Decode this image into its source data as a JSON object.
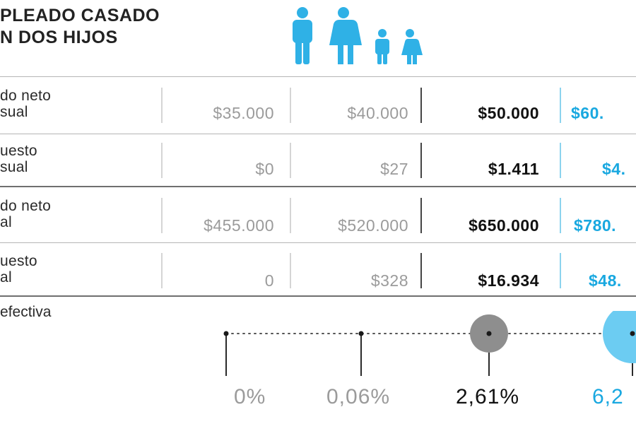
{
  "header": {
    "line1": "PLEADO CASADO",
    "line2": "N DOS HIJOS"
  },
  "icon": "family-icon",
  "colors": {
    "accent": "#19a8e0",
    "muted": "#9b9b9b",
    "strong": "#111111"
  },
  "rows": [
    {
      "label1": "do neto",
      "label2": "sual",
      "values": [
        "$35.000",
        "$40.000",
        "$50.000",
        "$60."
      ]
    },
    {
      "label1": "uesto",
      "label2": "sual",
      "values": [
        "$0",
        "$27",
        "$1.411",
        "$4."
      ]
    },
    {
      "label1": "do neto",
      "label2": "al",
      "values": [
        "$455.000",
        "$520.000",
        "$650.000",
        "$780."
      ]
    },
    {
      "label1": "uesto",
      "label2": "al",
      "values": [
        "0",
        "$328",
        "$16.934",
        "$48."
      ]
    }
  ],
  "effective_rate": {
    "label": "efectiva",
    "values": [
      "0%",
      "0,06%",
      "2,61%",
      "6,2"
    ],
    "percent": [
      0,
      0.06,
      2.61,
      6.2
    ]
  }
}
